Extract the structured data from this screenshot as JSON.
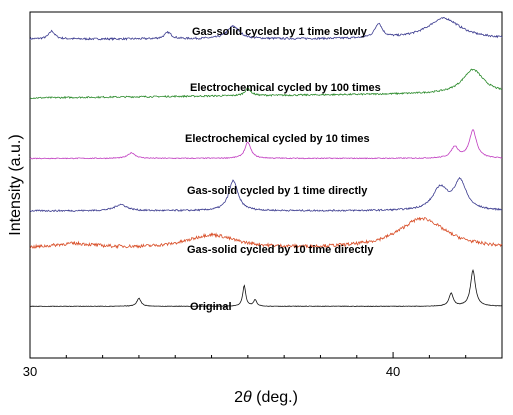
{
  "chart_data": {
    "type": "line",
    "xlabel_prefix": "2",
    "xlabel_symbol": "θ",
    "xlabel_suffix": " (deg.)",
    "ylabel": "Intensity (a.u.)",
    "xlim": [
      30,
      43
    ],
    "xticks": [
      30,
      40
    ],
    "yticks": [],
    "grid": false,
    "legend": "none",
    "series": [
      {
        "name": "Gas-solid cycled by 1 time slowly",
        "color": "#3b3b8f",
        "baseline": 0.94,
        "noise": 0.012,
        "peaks": [
          {
            "x": 30.6,
            "h": 0.1,
            "w": 0.1
          },
          {
            "x": 33.8,
            "h": 0.08,
            "w": 0.12
          },
          {
            "x": 35.6,
            "h": 0.16,
            "w": 0.2
          },
          {
            "x": 39.6,
            "h": 0.18,
            "w": 0.12
          },
          {
            "x": 41.4,
            "h": 0.26,
            "w": 0.55
          }
        ]
      },
      {
        "name": "Electrochemical cycled by 100 times",
        "color": "#2a8a2a",
        "baseline": 1.68,
        "noise": 0.01,
        "drift": 0.06,
        "peaks": [
          {
            "x": 36.0,
            "h": 0.09,
            "w": 0.1
          },
          {
            "x": 42.2,
            "h": 0.3,
            "w": 0.35
          }
        ]
      },
      {
        "name": "Electrochemical cycled by 10 times",
        "color": "#c03cc0",
        "baseline": 2.44,
        "noise": 0.006,
        "peaks": [
          {
            "x": 32.8,
            "h": 0.07,
            "w": 0.12
          },
          {
            "x": 36.0,
            "h": 0.2,
            "w": 0.1
          },
          {
            "x": 41.7,
            "h": 0.14,
            "w": 0.12
          },
          {
            "x": 42.2,
            "h": 0.35,
            "w": 0.12
          }
        ]
      },
      {
        "name": "Gas-solid cycled by 1 time directly",
        "color": "#3b3b8f",
        "baseline": 3.1,
        "noise": 0.01,
        "peaks": [
          {
            "x": 32.5,
            "h": 0.08,
            "w": 0.2
          },
          {
            "x": 35.6,
            "h": 0.38,
            "w": 0.15
          },
          {
            "x": 41.3,
            "h": 0.28,
            "w": 0.25
          },
          {
            "x": 41.85,
            "h": 0.36,
            "w": 0.2
          }
        ]
      },
      {
        "name": "Gas-solid cycled by 10 time directly",
        "color": "#d9502a",
        "baseline": 3.58,
        "noise": 0.02,
        "peaks": [
          {
            "x": 31.2,
            "h": 0.06,
            "w": 0.8
          },
          {
            "x": 35.0,
            "h": 0.17,
            "w": 0.8
          },
          {
            "x": 40.8,
            "h": 0.38,
            "w": 0.8
          }
        ]
      },
      {
        "name": "Original",
        "color": "#111111",
        "baseline": 4.3,
        "noise": 0.003,
        "peaks": [
          {
            "x": 33.0,
            "h": 0.1,
            "w": 0.07
          },
          {
            "x": 35.9,
            "h": 0.26,
            "w": 0.05
          },
          {
            "x": 36.2,
            "h": 0.08,
            "w": 0.05
          },
          {
            "x": 41.6,
            "h": 0.16,
            "w": 0.07
          },
          {
            "x": 42.2,
            "h": 0.45,
            "w": 0.08
          }
        ]
      }
    ]
  }
}
